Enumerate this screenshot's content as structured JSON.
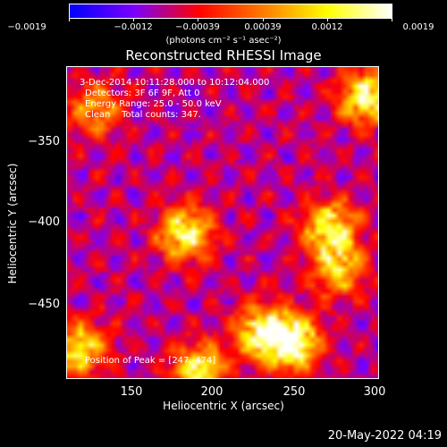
{
  "colorbar": {
    "ticks": [
      "−0.0019",
      "−0.0012",
      "−0.00039",
      "0.00039",
      "0.0012",
      "0.0019"
    ],
    "unit": "(photons cm⁻² s⁻¹ asec⁻²)",
    "colors": [
      "#0000ff",
      "#7a00ff",
      "#ff0000",
      "#ff7a00",
      "#ffff00",
      "#ffffff"
    ]
  },
  "chart_data": {
    "type": "heatmap",
    "title": "Reconstructed RHESSI Image",
    "xlabel": "Heliocentric X (arcsec)",
    "ylabel": "Heliocentric Y (arcsec)",
    "xlim": [
      110,
      300
    ],
    "ylim": [
      -497,
      -307
    ],
    "xticks": [
      "150",
      "200",
      "250",
      "300"
    ],
    "yticks": [
      "−350",
      "−400",
      "−450"
    ],
    "value_range": [
      -0.0019,
      0.0019
    ],
    "annotations": [
      "3-Dec-2014 10:11:28.000 to 10:12:04.000",
      "Detectors: 3F 6F 9F, Att 0",
      "Energy Range: 25.0 - 50.0 keV",
      "Clean    Total counts: 347.",
      "Position of Peak = [247,-474]"
    ],
    "sources": [
      {
        "x": 247,
        "y": -474,
        "relative_intensity": 1.0
      },
      {
        "x": 228,
        "y": -468,
        "relative_intensity": 0.8
      },
      {
        "x": 190,
        "y": -491,
        "relative_intensity": 0.75
      },
      {
        "x": 118,
        "y": -478,
        "relative_intensity": 0.7
      },
      {
        "x": 182,
        "y": -408,
        "relative_intensity": 0.8
      },
      {
        "x": 270,
        "y": -405,
        "relative_intensity": 0.8
      },
      {
        "x": 275,
        "y": -430,
        "relative_intensity": 0.6
      },
      {
        "x": 292,
        "y": -325,
        "relative_intensity": 0.85
      },
      {
        "x": 127,
        "y": -332,
        "relative_intensity": 0.5
      }
    ]
  },
  "footer": "20-May-2022 04:19"
}
